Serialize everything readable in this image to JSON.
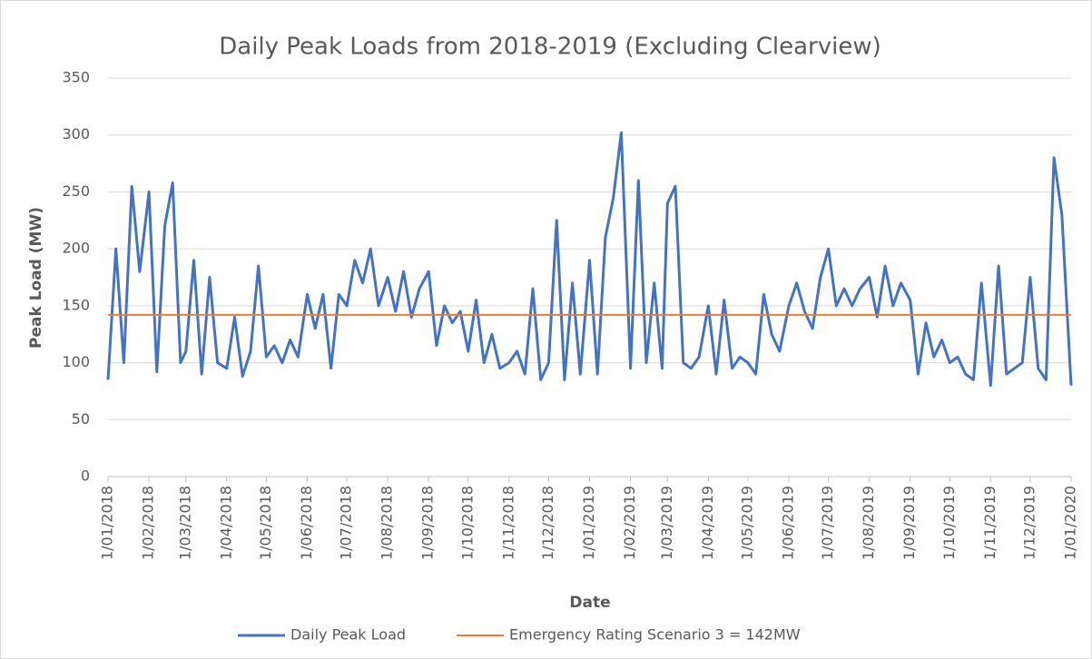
{
  "chart_data": {
    "type": "line",
    "title": "Daily Peak Loads from 2018-2019 (Excluding Clearview)",
    "xlabel": "Date",
    "ylabel": "Peak Load (MW)",
    "x": [
      "1/01/2018",
      "7/01/2018",
      "13/01/2018",
      "19/01/2018",
      "25/01/2018",
      "1/02/2018",
      "7/02/2018",
      "13/02/2018",
      "19/02/2018",
      "25/02/2018",
      "1/03/2018",
      "7/03/2018",
      "13/03/2018",
      "19/03/2018",
      "25/03/2018",
      "1/04/2018",
      "7/04/2018",
      "13/04/2018",
      "19/04/2018",
      "25/04/2018",
      "1/05/2018",
      "7/05/2018",
      "13/05/2018",
      "19/05/2018",
      "25/05/2018",
      "1/06/2018",
      "7/06/2018",
      "13/06/2018",
      "19/06/2018",
      "25/06/2018",
      "1/07/2018",
      "7/07/2018",
      "13/07/2018",
      "19/07/2018",
      "25/07/2018",
      "1/08/2018",
      "7/08/2018",
      "13/08/2018",
      "19/08/2018",
      "25/08/2018",
      "1/09/2018",
      "7/09/2018",
      "13/09/2018",
      "19/09/2018",
      "25/09/2018",
      "1/10/2018",
      "7/10/2018",
      "13/10/2018",
      "19/10/2018",
      "25/10/2018",
      "1/11/2018",
      "7/11/2018",
      "13/11/2018",
      "19/11/2018",
      "25/11/2018",
      "1/12/2018",
      "7/12/2018",
      "13/12/2018",
      "19/12/2018",
      "25/12/2018",
      "1/01/2019",
      "7/01/2019",
      "13/01/2019",
      "19/01/2019",
      "25/01/2019",
      "1/02/2019",
      "7/02/2019",
      "13/02/2019",
      "19/02/2019",
      "25/02/2019",
      "1/03/2019",
      "7/03/2019",
      "13/03/2019",
      "19/03/2019",
      "25/03/2019",
      "1/04/2019",
      "7/04/2019",
      "13/04/2019",
      "19/04/2019",
      "25/04/2019",
      "1/05/2019",
      "7/05/2019",
      "13/05/2019",
      "19/05/2019",
      "25/05/2019",
      "1/06/2019",
      "7/06/2019",
      "13/06/2019",
      "19/06/2019",
      "25/06/2019",
      "1/07/2019",
      "7/07/2019",
      "13/07/2019",
      "19/07/2019",
      "25/07/2019",
      "1/08/2019",
      "7/08/2019",
      "13/08/2019",
      "19/08/2019",
      "25/08/2019",
      "1/09/2019",
      "7/09/2019",
      "13/09/2019",
      "19/09/2019",
      "25/09/2019",
      "1/10/2019",
      "7/10/2019",
      "13/10/2019",
      "19/10/2019",
      "25/10/2019",
      "1/11/2019",
      "7/11/2019",
      "13/11/2019",
      "19/11/2019",
      "25/11/2019",
      "1/12/2019",
      "7/12/2019",
      "13/12/2019",
      "19/12/2019",
      "25/12/2019",
      "1/01/2020"
    ],
    "series": [
      {
        "name": "Daily Peak Load",
        "color": "#4472c4",
        "values": [
          85,
          200,
          100,
          255,
          180,
          250,
          92,
          220,
          258,
          100,
          110,
          190,
          90,
          175,
          100,
          95,
          140,
          88,
          110,
          185,
          105,
          115,
          100,
          120,
          105,
          160,
          130,
          160,
          95,
          160,
          150,
          190,
          170,
          200,
          150,
          175,
          145,
          180,
          140,
          165,
          180,
          115,
          150,
          135,
          145,
          110,
          155,
          100,
          125,
          95,
          100,
          110,
          90,
          165,
          85,
          100,
          225,
          85,
          170,
          90,
          190,
          90,
          210,
          245,
          302,
          95,
          260,
          100,
          170,
          95,
          240,
          255,
          100,
          95,
          105,
          150,
          90,
          155,
          95,
          105,
          100,
          90,
          160,
          125,
          110,
          150,
          170,
          145,
          130,
          175,
          200,
          150,
          165,
          150,
          165,
          175,
          140,
          185,
          150,
          170,
          155,
          90,
          135,
          105,
          120,
          100,
          105,
          90,
          85,
          170,
          80,
          185,
          90,
          95,
          100,
          175,
          95,
          85,
          280,
          230,
          80
        ]
      }
    ],
    "reference_line": {
      "name": "Emergency Rating Scenario 3 = 142MW",
      "value": 142,
      "color": "#ed7d31"
    },
    "xlim": [
      "1/01/2018",
      "1/01/2020"
    ],
    "xticks": [
      "1/01/2018",
      "1/02/2018",
      "1/03/2018",
      "1/04/2018",
      "1/05/2018",
      "1/06/2018",
      "1/07/2018",
      "1/08/2018",
      "1/09/2018",
      "1/10/2018",
      "1/11/2018",
      "1/12/2018",
      "1/01/2019",
      "1/02/2019",
      "1/03/2019",
      "1/04/2019",
      "1/05/2019",
      "1/06/2019",
      "1/07/2019",
      "1/08/2019",
      "1/09/2019",
      "1/10/2019",
      "1/11/2019",
      "1/12/2019",
      "1/01/2020"
    ],
    "ylim": [
      0,
      350
    ],
    "yticks": [
      0,
      50,
      100,
      150,
      200,
      250,
      300,
      350
    ],
    "grid": true,
    "legend": "bottom"
  }
}
